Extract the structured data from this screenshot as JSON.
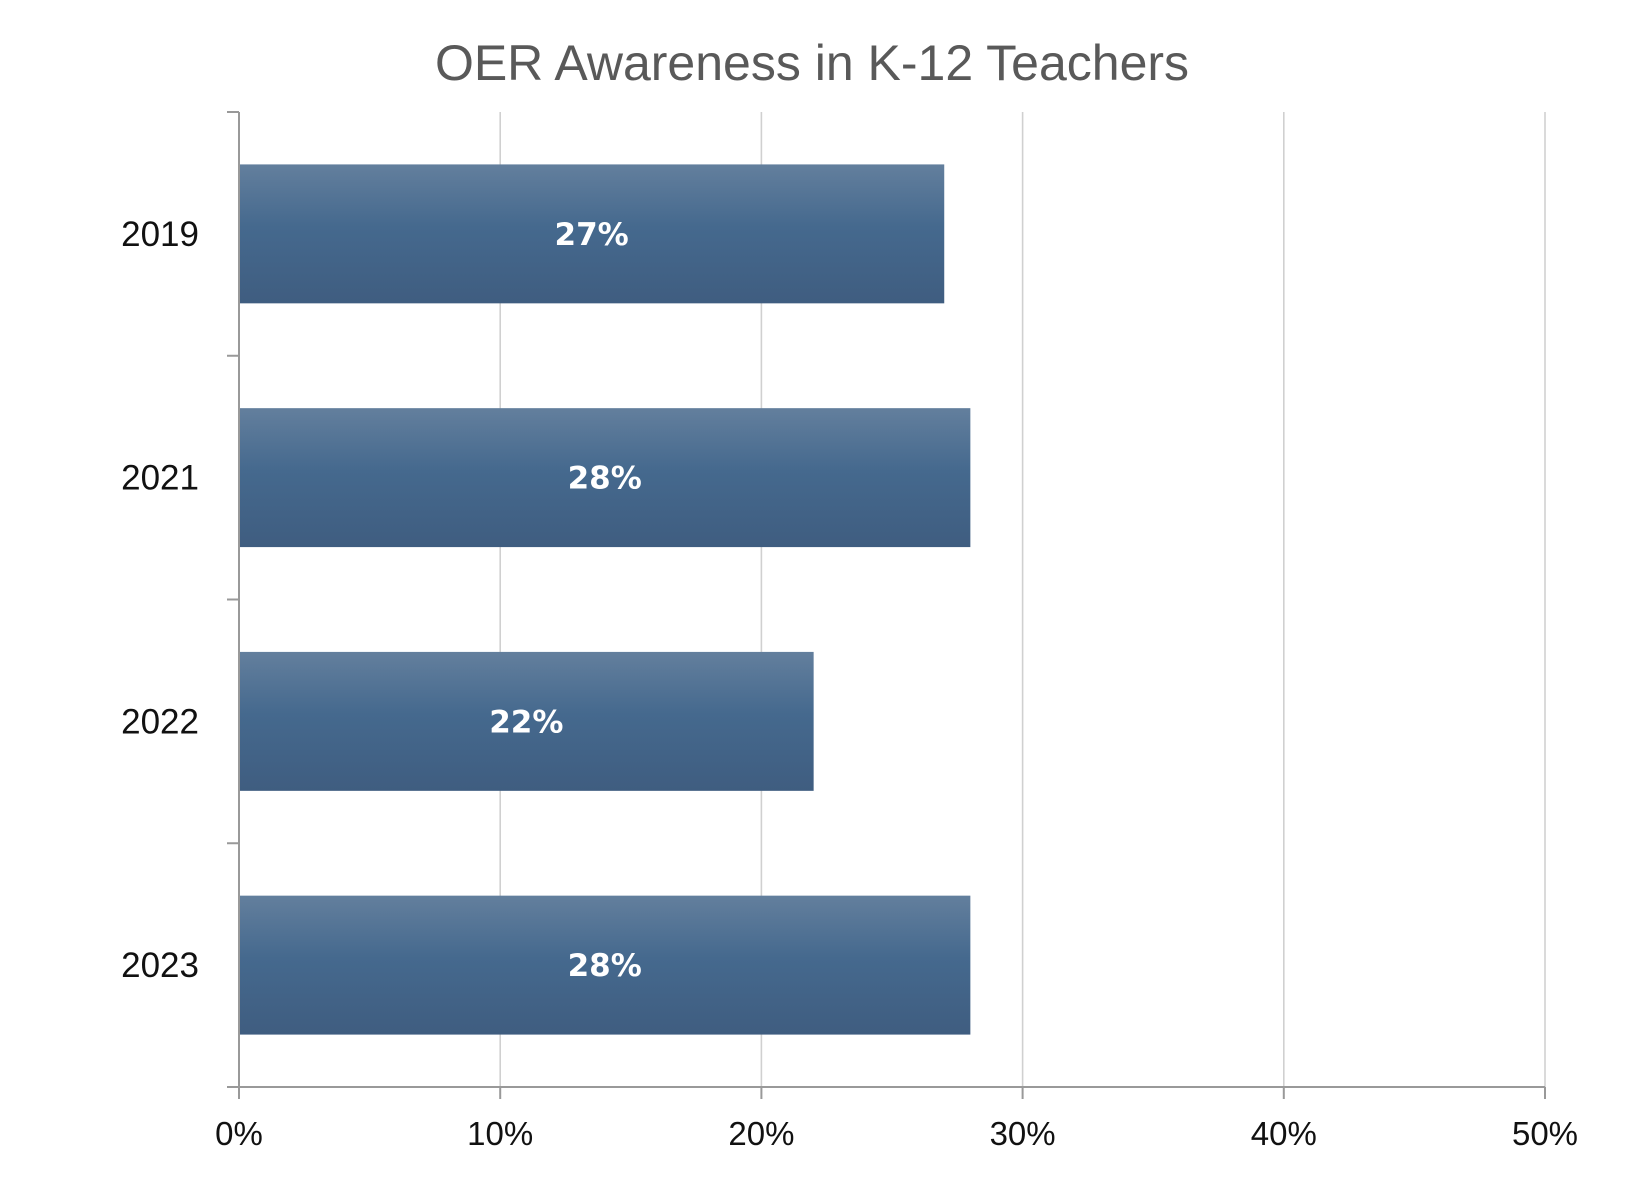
{
  "chart_data": {
    "type": "bar",
    "orientation": "horizontal",
    "title": "OER Awareness in K-12 Teachers",
    "xlabel": "",
    "ylabel": "",
    "categories": [
      "2019",
      "2021",
      "2022",
      "2023"
    ],
    "values": [
      27,
      28,
      22,
      28
    ],
    "data_labels": [
      "27%",
      "28%",
      "22%",
      "28%"
    ],
    "xlim": [
      0,
      50
    ],
    "x_ticks": [
      0,
      10,
      20,
      30,
      40,
      50
    ],
    "x_tick_labels": [
      "0%",
      "10%",
      "20%",
      "30%",
      "40%",
      "50%"
    ],
    "grid": "vertical",
    "legend": "none",
    "bar_color_top": "#637f9d",
    "bar_color_mid": "#45698e",
    "bar_color_bottom": "#3f5d80",
    "gridline_color": "#d0d0d0",
    "axis_color": "#999999"
  }
}
